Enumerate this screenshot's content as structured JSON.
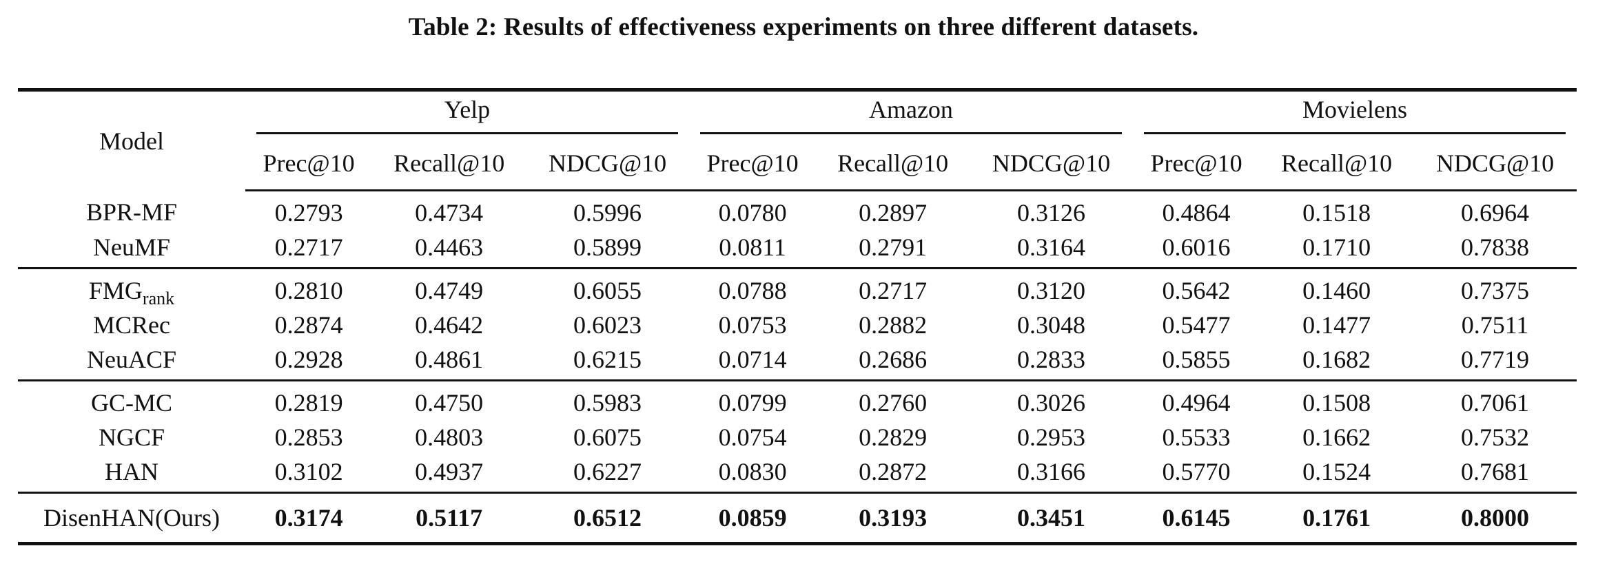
{
  "caption": "Table 2: Results of effectiveness experiments on three different datasets.",
  "header": {
    "model_label": "Model",
    "datasets": [
      "Yelp",
      "Amazon",
      "Movielens"
    ],
    "metrics": [
      "Prec@10",
      "Recall@10",
      "NDCG@10"
    ]
  },
  "groups": [
    {
      "rows": [
        {
          "model": "BPR-MF",
          "values": [
            "0.2793",
            "0.4734",
            "0.5996",
            "0.0780",
            "0.2897",
            "0.3126",
            "0.4864",
            "0.1518",
            "0.6964"
          ]
        },
        {
          "model": "NeuMF",
          "values": [
            "0.2717",
            "0.4463",
            "0.5899",
            "0.0811",
            "0.2791",
            "0.3164",
            "0.6016",
            "0.1710",
            "0.7838"
          ]
        }
      ]
    },
    {
      "rows": [
        {
          "model": "FMG",
          "model_sub": "rank",
          "values": [
            "0.2810",
            "0.4749",
            "0.6055",
            "0.0788",
            "0.2717",
            "0.3120",
            "0.5642",
            "0.1460",
            "0.7375"
          ]
        },
        {
          "model": "MCRec",
          "values": [
            "0.2874",
            "0.4642",
            "0.6023",
            "0.0753",
            "0.2882",
            "0.3048",
            "0.5477",
            "0.1477",
            "0.7511"
          ]
        },
        {
          "model": "NeuACF",
          "values": [
            "0.2928",
            "0.4861",
            "0.6215",
            "0.0714",
            "0.2686",
            "0.2833",
            "0.5855",
            "0.1682",
            "0.7719"
          ]
        }
      ]
    },
    {
      "rows": [
        {
          "model": "GC-MC",
          "values": [
            "0.2819",
            "0.4750",
            "0.5983",
            "0.0799",
            "0.2760",
            "0.3026",
            "0.4964",
            "0.1508",
            "0.7061"
          ]
        },
        {
          "model": "NGCF",
          "values": [
            "0.2853",
            "0.4803",
            "0.6075",
            "0.0754",
            "0.2829",
            "0.2953",
            "0.5533",
            "0.1662",
            "0.7532"
          ]
        },
        {
          "model": "HAN",
          "values": [
            "0.3102",
            "0.4937",
            "0.6227",
            "0.0830",
            "0.2872",
            "0.3166",
            "0.5770",
            "0.1524",
            "0.7681"
          ]
        }
      ]
    }
  ],
  "ours": {
    "model": "DisenHAN(Ours)",
    "values": [
      "0.3174",
      "0.5117",
      "0.6512",
      "0.0859",
      "0.3193",
      "0.3451",
      "0.6145",
      "0.1761",
      "0.8000"
    ]
  }
}
